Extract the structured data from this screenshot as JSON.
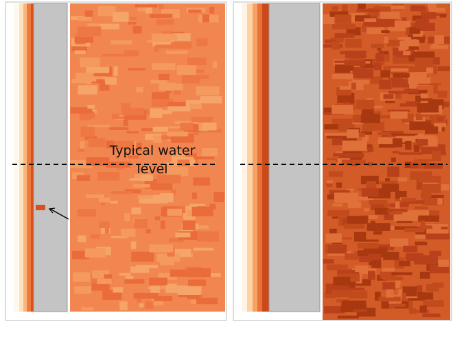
{
  "annotation": {
    "lines": [
      "Typical water",
      "level"
    ]
  }
}
